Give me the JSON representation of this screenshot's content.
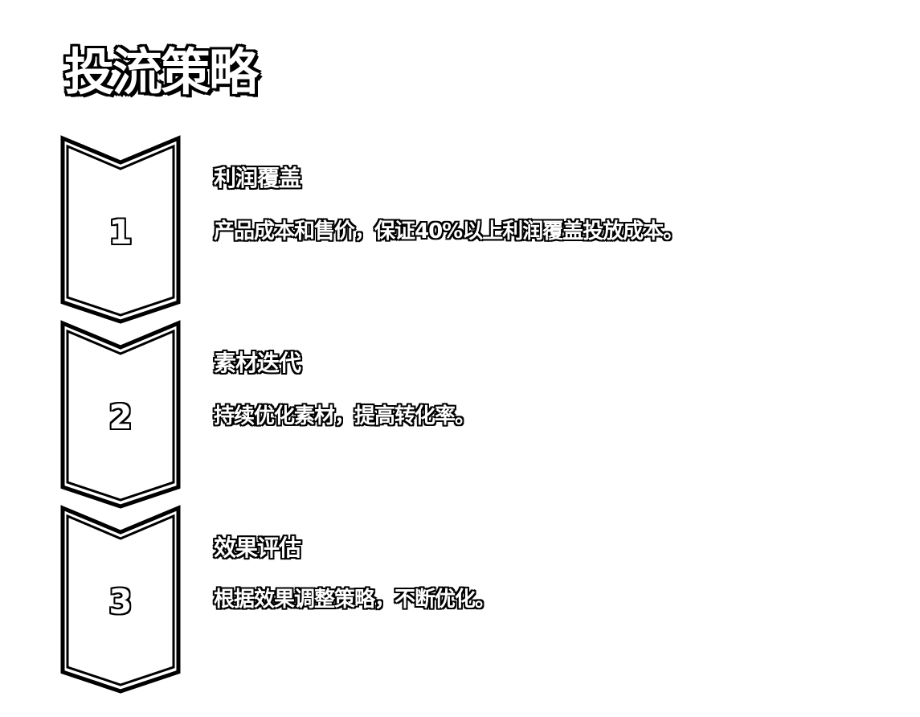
{
  "page": {
    "title": "投流策略"
  },
  "steps": [
    {
      "number": "1",
      "heading": "利润覆盖",
      "description": "产品成本和售价，保证40%以上利润覆盖投放成本。"
    },
    {
      "number": "2",
      "heading": "素材迭代",
      "description": "持续优化素材，提高转化率。"
    },
    {
      "number": "3",
      "heading": "效果评估",
      "description": "根据效果调整策略，不断优化。"
    }
  ],
  "colors": {
    "background": "#ffffff",
    "stroke": "#000000",
    "fill": "#ffffff"
  }
}
